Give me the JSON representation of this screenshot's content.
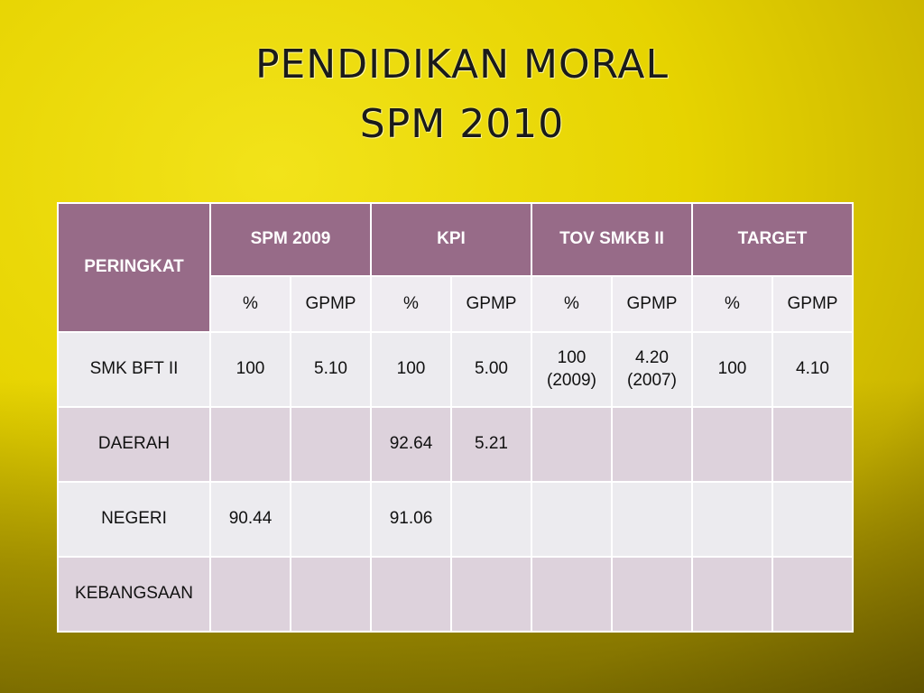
{
  "title": {
    "lines": [
      "PENDIDIKAN MORAL",
      "SPM 2010"
    ]
  },
  "table": {
    "row_header": "PERINGKAT",
    "groups": [
      "SPM 2009",
      "KPI",
      "TOV SMKB II",
      "TARGET"
    ],
    "subheaders": [
      "%",
      "GPMP",
      "%",
      "GPMP",
      "%",
      "GPMP",
      "%",
      "GPMP"
    ],
    "rows": [
      [
        "SMK BFT II",
        "100",
        "5.10",
        "100",
        "5.00",
        "100\n(2009)",
        "4.20\n(2007)",
        "100",
        "4.10"
      ],
      [
        "DAERAH",
        null,
        null,
        "92.64",
        "5.21",
        null,
        null,
        null,
        null
      ],
      [
        "NEGERI",
        "90.44",
        null,
        "91.06",
        null,
        null,
        null,
        null,
        null
      ],
      [
        "KEBANGSAAN",
        null,
        null,
        null,
        null,
        null,
        null,
        null,
        null
      ]
    ]
  }
}
